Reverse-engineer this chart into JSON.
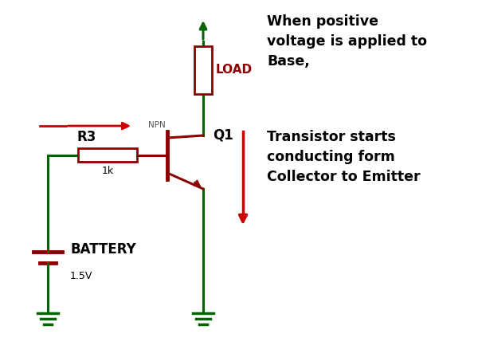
{
  "bg_color": "#ffffff",
  "dark_green": "#006400",
  "dark_red": "#8B0000",
  "red": "#CC0000",
  "text_color": "#000000",
  "title_text1": "When positive\nvoltage is applied to\nBase,",
  "title_text2": "Transistor starts\nconducting form\nCollector to Emitter",
  "load_label": "LOAD",
  "r3_label": "R3",
  "r3_val": "1k",
  "npn_label": "NPN",
  "q1_label": "Q1",
  "battery_label": "BATTERY",
  "battery_val": "1.5V",
  "figw": 6.0,
  "figh": 4.43,
  "dpi": 100,
  "xlim": [
    0,
    6.0
  ],
  "ylim": [
    0,
    4.43
  ]
}
